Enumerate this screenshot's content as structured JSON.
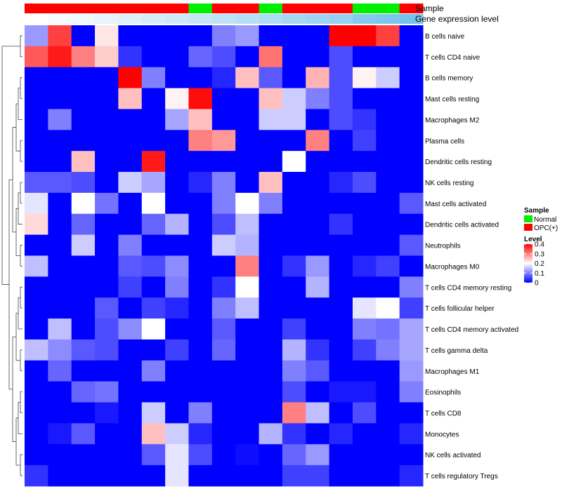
{
  "chart_data": {
    "type": "heatmap",
    "annotation_rows": [
      "Sample",
      "Gene expression level"
    ],
    "columns": [
      {
        "sample": "OPC(+)",
        "expression_level": 0.0
      },
      {
        "sample": "OPC(+)",
        "expression_level": 0.05
      },
      {
        "sample": "OPC(+)",
        "expression_level": 0.1
      },
      {
        "sample": "OPC(+)",
        "expression_level": 0.15
      },
      {
        "sample": "OPC(+)",
        "expression_level": 0.2
      },
      {
        "sample": "OPC(+)",
        "expression_level": 0.25
      },
      {
        "sample": "OPC(+)",
        "expression_level": 0.3
      },
      {
        "sample": "Normal",
        "expression_level": 0.35
      },
      {
        "sample": "OPC(+)",
        "expression_level": 0.4
      },
      {
        "sample": "OPC(+)",
        "expression_level": 0.45
      },
      {
        "sample": "Normal",
        "expression_level": 0.5
      },
      {
        "sample": "OPC(+)",
        "expression_level": 0.55
      },
      {
        "sample": "OPC(+)",
        "expression_level": 0.6
      },
      {
        "sample": "OPC(+)",
        "expression_level": 0.65
      },
      {
        "sample": "Normal",
        "expression_level": 0.75
      },
      {
        "sample": "Normal",
        "expression_level": 0.8
      },
      {
        "sample": "OPC(+)",
        "expression_level": 0.85
      }
    ],
    "rows": [
      "B cells naive",
      "T cells CD4 naive",
      "B cells memory",
      "Mast cells resting",
      "Macrophages M2",
      "Plasma cells",
      "Dendritic cells resting",
      "NK cells resting",
      "Mast cells activated",
      "Dendritic cells activated",
      "Neutrophils",
      "Macrophages M0",
      "T cells CD4 memory resting",
      "T cells follicular helper",
      "T cells CD4 memory activated",
      "T cells gamma delta",
      "Macrophages M1",
      "Eosinophils",
      "T cells CD8",
      "Monocytes",
      "NK cells activated",
      "T cells regulatory  Tregs"
    ],
    "values": [
      [
        0.12,
        0.35,
        0.0,
        0.22,
        0.0,
        0.0,
        0.0,
        0.0,
        0.1,
        0.12,
        0.0,
        0.0,
        0.0,
        0.4,
        0.4,
        0.35,
        0.0
      ],
      [
        0.33,
        0.38,
        0.3,
        0.24,
        0.04,
        0.0,
        0.0,
        0.08,
        0.06,
        0.0,
        0.31,
        0.0,
        0.0,
        0.06,
        0.0,
        0.0,
        0.0
      ],
      [
        0.0,
        0.0,
        0.0,
        0.0,
        0.4,
        0.1,
        0.0,
        0.0,
        0.03,
        0.25,
        0.07,
        0.0,
        0.26,
        0.06,
        0.21,
        0.16,
        0.0
      ],
      [
        0.0,
        0.0,
        0.0,
        0.0,
        0.25,
        0.0,
        0.21,
        0.39,
        0.0,
        0.0,
        0.25,
        0.16,
        0.1,
        0.06,
        0.0,
        0.0,
        0.0
      ],
      [
        0.0,
        0.1,
        0.0,
        0.0,
        0.0,
        0.0,
        0.13,
        0.25,
        0.0,
        0.0,
        0.16,
        0.16,
        0.0,
        0.06,
        0.04,
        0.0,
        0.0
      ],
      [
        0.0,
        0.0,
        0.0,
        0.0,
        0.0,
        0.0,
        0.0,
        0.3,
        0.28,
        0.0,
        0.0,
        0.0,
        0.3,
        0.0,
        0.05,
        0.0,
        0.0
      ],
      [
        0.0,
        0.0,
        0.25,
        0.0,
        0.0,
        0.38,
        0.0,
        0.0,
        0.0,
        0.0,
        0.0,
        0.2,
        0.0,
        0.0,
        0.0,
        0.0,
        0.0
      ],
      [
        0.07,
        0.07,
        0.06,
        0.0,
        0.16,
        0.13,
        0.0,
        0.03,
        0.1,
        0.0,
        0.25,
        0.0,
        0.0,
        0.03,
        0.06,
        0.0,
        0.0
      ],
      [
        0.18,
        0.0,
        0.2,
        0.09,
        0.0,
        0.2,
        0.0,
        0.0,
        0.1,
        0.2,
        0.1,
        0.0,
        0.0,
        0.0,
        0.0,
        0.0,
        0.07
      ],
      [
        0.23,
        0.0,
        0.08,
        0.0,
        0.0,
        0.08,
        0.14,
        0.0,
        0.06,
        0.15,
        0.0,
        0.0,
        0.0,
        0.04,
        0.0,
        0.0,
        0.0
      ],
      [
        0.0,
        0.0,
        0.16,
        0.0,
        0.1,
        0.0,
        0.0,
        0.0,
        0.16,
        0.14,
        0.0,
        0.0,
        0.0,
        0.0,
        0.0,
        0.0,
        0.07
      ],
      [
        0.15,
        0.0,
        0.0,
        0.0,
        0.07,
        0.06,
        0.11,
        0.0,
        0.0,
        0.3,
        0.0,
        0.04,
        0.12,
        0.0,
        0.03,
        0.05,
        0.0
      ],
      [
        0.0,
        0.0,
        0.0,
        0.0,
        0.05,
        0.0,
        0.1,
        0.0,
        0.04,
        0.2,
        0.0,
        0.0,
        0.14,
        0.0,
        0.0,
        0.0,
        0.1
      ],
      [
        0.0,
        0.0,
        0.0,
        0.07,
        0.0,
        0.05,
        0.03,
        0.0,
        0.1,
        0.15,
        0.0,
        0.0,
        0.0,
        0.0,
        0.18,
        0.2,
        0.05
      ],
      [
        0.0,
        0.15,
        0.0,
        0.06,
        0.11,
        0.2,
        0.0,
        0.0,
        0.07,
        0.0,
        0.0,
        0.05,
        0.0,
        0.0,
        0.1,
        0.09,
        0.13
      ],
      [
        0.15,
        0.11,
        0.07,
        0.06,
        0.0,
        0.0,
        0.05,
        0.0,
        0.08,
        0.0,
        0.0,
        0.14,
        0.04,
        0.0,
        0.05,
        0.1,
        0.13
      ],
      [
        0.0,
        0.08,
        0.0,
        0.0,
        0.0,
        0.1,
        0.0,
        0.0,
        0.0,
        0.0,
        0.0,
        0.1,
        0.07,
        0.0,
        0.0,
        0.0,
        0.12
      ],
      [
        0.0,
        0.0,
        0.08,
        0.09,
        0.0,
        0.0,
        0.0,
        0.0,
        0.0,
        0.0,
        0.0,
        0.06,
        0.0,
        0.02,
        0.02,
        0.0,
        0.1
      ],
      [
        0.0,
        0.0,
        0.0,
        0.02,
        0.0,
        0.16,
        0.0,
        0.1,
        0.0,
        0.0,
        0.0,
        0.3,
        0.15,
        0.0,
        0.06,
        0.0,
        0.0
      ],
      [
        0.0,
        0.02,
        0.07,
        0.0,
        0.0,
        0.25,
        0.16,
        0.03,
        0.0,
        0.0,
        0.14,
        0.04,
        0.0,
        0.03,
        0.0,
        0.0,
        0.03
      ],
      [
        0.0,
        0.0,
        0.0,
        0.0,
        0.0,
        0.07,
        0.18,
        0.06,
        0.0,
        0.01,
        0.0,
        0.08,
        0.12,
        0.0,
        0.0,
        0.0,
        0.0
      ],
      [
        0.04,
        0.0,
        0.0,
        0.0,
        0.0,
        0.0,
        0.18,
        0.0,
        0.0,
        0.0,
        0.0,
        0.05,
        0.05,
        0.0,
        0.0,
        0.0,
        0.03
      ]
    ],
    "value_range": [
      0,
      0.4
    ],
    "color_scale": {
      "low": "#0000ff",
      "mid": "#ffffff",
      "high": "#ff0000",
      "mid_value": 0.2
    },
    "annotation_colors": {
      "Sample": {
        "Normal": "#00ee00",
        "OPC(+)": "#ff0000"
      },
      "Gene expression level": {
        "low": "#ffffff",
        "high": "#5cb8e8"
      }
    },
    "legend": {
      "sample_title": "Sample",
      "sample_entries": [
        "Normal",
        "OPC(+)"
      ],
      "level_title": "Level",
      "level_ticks": [
        "0.4",
        "0.3",
        "0.2",
        "0.1",
        "0"
      ],
      "level_tick_values": [
        0.4,
        0.3,
        0.2,
        0.1,
        0
      ],
      "placement": "right"
    },
    "row_dendrogram": true,
    "grid": false
  }
}
